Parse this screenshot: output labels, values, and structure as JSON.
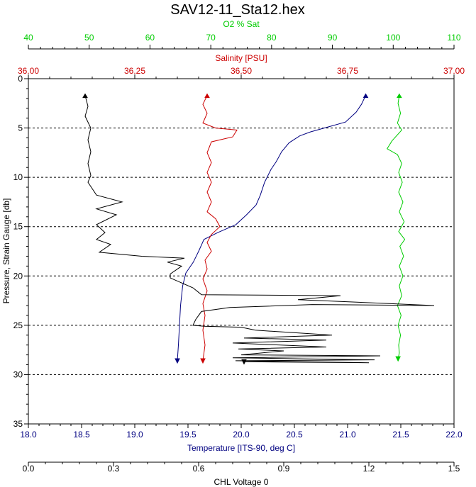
{
  "chart_data": {
    "type": "line",
    "title": "SAV12-11_Sta12.hex",
    "grid": "horizontal dashed lines at every 5 db",
    "y_axis": {
      "label": "Pressure, Strain Gauge [db]",
      "range": [
        0,
        35
      ],
      "inverted": true,
      "ticks": [
        "0",
        "5",
        "10",
        "15",
        "20",
        "25",
        "30",
        "35"
      ],
      "color": "#000000"
    },
    "x_axes": [
      {
        "key": "o2",
        "label": "O2 % Sat",
        "position": "top-outer",
        "color": "#00cc00",
        "range": [
          40,
          110
        ],
        "ticks": [
          "40",
          "50",
          "60",
          "70",
          "80",
          "90",
          "100",
          "110"
        ]
      },
      {
        "key": "sal",
        "label": "Salinity [PSU]",
        "position": "top-inner",
        "color": "#cc0000",
        "range": [
          36.0,
          37.0
        ],
        "ticks": [
          "36.00",
          "36.25",
          "36.50",
          "36.75",
          "37.00"
        ]
      },
      {
        "key": "temp",
        "label": "Temperature [ITS-90, deg C]",
        "position": "bottom-inner",
        "color": "#000080",
        "range": [
          18.0,
          22.0
        ],
        "ticks": [
          "18.0",
          "18.5",
          "19.0",
          "19.5",
          "20.0",
          "20.5",
          "21.0",
          "21.5",
          "22.0"
        ]
      },
      {
        "key": "chl",
        "label": "CHL Voltage 0",
        "position": "bottom-outer",
        "color": "#000000",
        "range": [
          0.0,
          1.5
        ],
        "ticks": [
          "0.0",
          "0.3",
          "0.6",
          "0.9",
          "1.2",
          "1.5"
        ]
      }
    ],
    "series": [
      {
        "axis": "temp",
        "color": "#000080",
        "points": [
          [
            21.17,
            1.7
          ],
          [
            21.13,
            2.6
          ],
          [
            21.08,
            3.4
          ],
          [
            20.98,
            4.4
          ],
          [
            20.78,
            5.0
          ],
          [
            20.65,
            5.4
          ],
          [
            20.55,
            5.8
          ],
          [
            20.45,
            6.5
          ],
          [
            20.38,
            7.4
          ],
          [
            20.33,
            8.4
          ],
          [
            20.28,
            9.2
          ],
          [
            20.22,
            10.5
          ],
          [
            20.18,
            11.8
          ],
          [
            20.14,
            12.8
          ],
          [
            20.05,
            13.8
          ],
          [
            19.95,
            14.8
          ],
          [
            19.78,
            15.6
          ],
          [
            19.65,
            16.3
          ],
          [
            19.6,
            17.5
          ],
          [
            19.55,
            18.6
          ],
          [
            19.48,
            19.7
          ],
          [
            19.45,
            21.0
          ],
          [
            19.43,
            23.0
          ],
          [
            19.42,
            25.0
          ],
          [
            19.41,
            27.0
          ],
          [
            19.4,
            28.6
          ]
        ]
      },
      {
        "axis": "sal",
        "color": "#cc0000",
        "points": [
          [
            36.42,
            1.7
          ],
          [
            36.41,
            2.6
          ],
          [
            36.42,
            3.5
          ],
          [
            36.41,
            4.5
          ],
          [
            36.44,
            5.0
          ],
          [
            36.49,
            5.2
          ],
          [
            36.48,
            5.9
          ],
          [
            36.43,
            6.4
          ],
          [
            36.42,
            7.5
          ],
          [
            36.43,
            8.5
          ],
          [
            36.42,
            9.5
          ],
          [
            36.43,
            10.5
          ],
          [
            36.42,
            11.5
          ],
          [
            36.43,
            12.5
          ],
          [
            36.42,
            13.5
          ],
          [
            36.44,
            14.2
          ],
          [
            36.45,
            15.0
          ],
          [
            36.43,
            15.8
          ],
          [
            36.42,
            16.6
          ],
          [
            36.43,
            17.5
          ],
          [
            36.415,
            18.4
          ],
          [
            36.42,
            19.3
          ],
          [
            36.41,
            20.3
          ],
          [
            36.42,
            21.5
          ],
          [
            36.41,
            22.8
          ],
          [
            36.415,
            24.0
          ],
          [
            36.41,
            25.5
          ],
          [
            36.415,
            27.0
          ],
          [
            36.41,
            28.6
          ]
        ]
      },
      {
        "axis": "o2",
        "color": "#00cc00",
        "points": [
          [
            101.0,
            1.7
          ],
          [
            100.8,
            2.5
          ],
          [
            101.2,
            3.5
          ],
          [
            100.7,
            4.5
          ],
          [
            101.4,
            5.2
          ],
          [
            99.8,
            6.3
          ],
          [
            99.0,
            7.1
          ],
          [
            100.7,
            7.7
          ],
          [
            101.4,
            8.6
          ],
          [
            100.9,
            9.5
          ],
          [
            101.5,
            10.5
          ],
          [
            100.9,
            11.5
          ],
          [
            101.6,
            12.5
          ],
          [
            101.0,
            13.5
          ],
          [
            101.8,
            14.5
          ],
          [
            100.9,
            15.5
          ],
          [
            101.9,
            16.3
          ],
          [
            101.1,
            17.0
          ],
          [
            101.7,
            18.0
          ],
          [
            101.0,
            19.0
          ],
          [
            101.6,
            20.0
          ],
          [
            101.0,
            21.0
          ],
          [
            101.4,
            22.0
          ],
          [
            100.7,
            23.0
          ],
          [
            101.3,
            24.0
          ],
          [
            100.8,
            25.0
          ],
          [
            101.2,
            26.0
          ],
          [
            100.9,
            27.0
          ],
          [
            101.0,
            27.8
          ],
          [
            100.8,
            28.4
          ]
        ]
      },
      {
        "axis": "chl",
        "color": "#000000",
        "points": [
          [
            0.2,
            1.7
          ],
          [
            0.21,
            2.8
          ],
          [
            0.2,
            3.8
          ],
          [
            0.22,
            5.0
          ],
          [
            0.21,
            6.2
          ],
          [
            0.22,
            7.4
          ],
          [
            0.21,
            8.6
          ],
          [
            0.22,
            9.8
          ],
          [
            0.21,
            10.5
          ],
          [
            0.24,
            11.8
          ],
          [
            0.33,
            12.5
          ],
          [
            0.24,
            13.2
          ],
          [
            0.31,
            13.8
          ],
          [
            0.24,
            14.8
          ],
          [
            0.27,
            15.6
          ],
          [
            0.24,
            16.3
          ],
          [
            0.29,
            16.8
          ],
          [
            0.25,
            17.6
          ],
          [
            0.4,
            18.0
          ],
          [
            0.55,
            18.2
          ],
          [
            0.49,
            18.6
          ],
          [
            0.54,
            19.0
          ],
          [
            0.5,
            19.8
          ],
          [
            0.5,
            20.2
          ],
          [
            0.58,
            21.2
          ],
          [
            0.61,
            21.9
          ],
          [
            1.1,
            22.0
          ],
          [
            0.95,
            22.4
          ],
          [
            1.43,
            23.0
          ],
          [
            1.0,
            22.9
          ],
          [
            0.71,
            23.2
          ],
          [
            0.61,
            23.6
          ],
          [
            0.59,
            24.4
          ],
          [
            0.58,
            25.0
          ],
          [
            0.62,
            25.1
          ],
          [
            0.75,
            25.2
          ],
          [
            0.8,
            25.5
          ],
          [
            1.07,
            26.0
          ],
          [
            0.76,
            26.3
          ],
          [
            1.05,
            26.5
          ],
          [
            0.72,
            26.8
          ],
          [
            1.05,
            27.2
          ],
          [
            0.74,
            27.4
          ],
          [
            0.9,
            27.6
          ],
          [
            0.75,
            28.0
          ],
          [
            1.24,
            28.1
          ],
          [
            0.72,
            28.3
          ],
          [
            1.22,
            28.5
          ],
          [
            0.73,
            28.6
          ],
          [
            1.2,
            28.8
          ],
          [
            0.76,
            28.7
          ]
        ]
      }
    ]
  }
}
